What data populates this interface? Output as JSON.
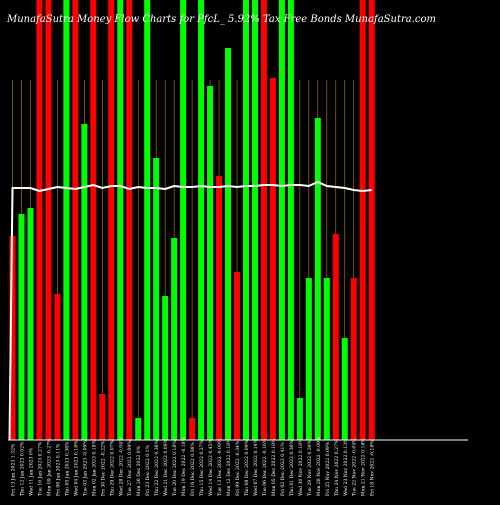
{
  "chart_data": {
    "type": "bar",
    "title": "MunafaSutra Money Flow Charts for PfcL_5.92% Tax Free Bonds",
    "title_parts": [
      "MunafaSutra Money Flow Charts for PfcL_",
      "5.92% Tax Free Bonds",
      " MunafaSutra.com"
    ],
    "ylim": [
      0,
      440
    ],
    "categories": [
      "Fri 13 Jan 2023 1.32%",
      "Thu 12 Jan 2023 0.02%",
      "Wed 11 Jan 2023 0%",
      "Tue 10 Jan 2023 0.27%",
      "Mon 09 Jan 2023 -0.27%",
      "Fri 06 Jan 2023 0.11%",
      "Thu 05 Jan 2023 0.36%",
      "Wed 04 Jan 2023 0.18%",
      "Tue 03 Jan 2023 -0.09%",
      "Mon 02 Jan 2023 0.18%",
      "Fri 30 Dec 2022 -0.22%",
      "Thu 29 Dec 2022 0.07%",
      "Wed 28 Dec 2022 -0.04%",
      "Tue 27 Dec 2022 0.09%",
      "Mon 26 Dec 2022 0%",
      "Fri 23 Dec 2022 0.1%",
      "Thu 22 Dec 2022 0.36%",
      "Wed 21 Dec 2022 0.09%",
      "Tue 20 Dec 2022 0.18%",
      "Mon 19 Dec 2022 -0.18%",
      "Fri 16 Dec 2022 0.36%",
      "Thu 15 Dec 2022 0.27%",
      "Wed 14 Dec 2022 0.45%",
      "Tue 13 Dec 2022 -0.09%",
      "Mon 12 Dec 2022 0.18%",
      "Fri 09 Dec 2022 -0.34%",
      "Thu 08 Dec 2022 0.09%",
      "Wed 07 Dec 2022 0.14%",
      "Tue 06 Dec 2022 -0.16%",
      "Mon 05 Dec 2022 0.18%",
      "Fri 02 Dec 2022 0.41%",
      "Thu 01 Dec 2022 0.36%",
      "Wed 30 Nov 2022 0.18%",
      "Tue 29 Nov 2022 0.39%",
      "Mon 28 Nov 2022 -0.09%",
      "Fri 25 Nov 2022 0.09%",
      "Thu 24 Nov 2022 0.27%",
      "Wed 23 Nov 2022 0.13%",
      "Tue 22 Nov 2022 -0.04%",
      "Mon 21 Nov 2022 0.18%",
      "Fri 18 Nov 2022 -0.18%"
    ],
    "values": [
      204,
      226,
      232,
      440,
      440,
      146,
      440,
      440,
      316,
      440,
      46,
      440,
      440,
      440,
      22,
      440,
      282,
      144,
      202,
      440,
      22,
      440,
      354,
      264,
      392,
      168,
      440,
      440,
      440,
      362,
      440,
      440,
      42,
      162,
      322,
      162,
      206,
      102,
      162,
      440,
      440
    ],
    "colors": [
      "r",
      "g",
      "g",
      "r",
      "r",
      "r",
      "g",
      "r",
      "g",
      "r",
      "r",
      "r",
      "g",
      "r",
      "g",
      "g",
      "g",
      "g",
      "g",
      "g",
      "r",
      "g",
      "g",
      "r",
      "g",
      "r",
      "g",
      "g",
      "r",
      "r",
      "g",
      "g",
      "g",
      "g",
      "g",
      "g",
      "r",
      "g",
      "r",
      "r",
      "r"
    ],
    "line": [
      252,
      252,
      252,
      249,
      251,
      253,
      252,
      251,
      253,
      255,
      252,
      254,
      254,
      251,
      253,
      252,
      252,
      251,
      254,
      253,
      253,
      254,
      253,
      253,
      254,
      253,
      254,
      254,
      255,
      255,
      254,
      255,
      255,
      254,
      258,
      254,
      253,
      252,
      250,
      249,
      250
    ],
    "line_start": 0,
    "xlabel": "",
    "ylabel": "",
    "grid": false,
    "colors_hex": {
      "up": "#00ff00",
      "down": "#ff0000",
      "line": "#ffffff",
      "axis": "#ffffff",
      "vgrid": "#b8860b",
      "background": "#000000",
      "title": "#ffffff"
    }
  }
}
